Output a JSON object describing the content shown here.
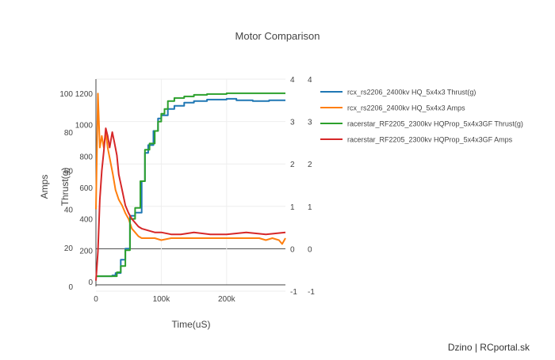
{
  "chart_data": {
    "type": "line",
    "title": "Motor Comparison",
    "xlabel": "Time(uS)",
    "ylabels": {
      "thrust": "Thrust(g)",
      "amps": "Amps"
    },
    "xlim": [
      0,
      290000
    ],
    "axes": {
      "thrust_left": {
        "range": [
          0,
          1250
        ],
        "ticks": [
          0,
          200,
          400,
          600,
          800,
          1000,
          1200
        ]
      },
      "amps_left": {
        "range": [
          0,
          105
        ],
        "ticks": [
          0,
          20,
          40,
          60,
          80,
          100
        ]
      },
      "amps_right_1": {
        "range": [
          -1,
          4
        ],
        "ticks": [
          -1,
          0,
          1,
          2,
          3,
          4
        ]
      },
      "amps_right_2": {
        "range": [
          -1,
          4
        ],
        "ticks": [
          -1,
          0,
          1,
          2,
          3,
          4
        ]
      }
    },
    "xticks": [
      0,
      100000,
      200000
    ],
    "xtick_labels": [
      "0",
      "100k",
      "200k"
    ],
    "grid": true,
    "legend_position": "right",
    "series": [
      {
        "name": "rcx_rs2206_2400kv HQ_5x4x3 Thrust(g)",
        "color": "#1f77b4",
        "axis": "thrust",
        "step": true,
        "x": [
          0,
          12000,
          25000,
          30000,
          38000,
          45000,
          52000,
          60000,
          70000,
          75000,
          80000,
          88000,
          95000,
          100000,
          110000,
          120000,
          135000,
          150000,
          170000,
          200000,
          215000,
          240000,
          265000,
          290000
        ],
        "y": [
          35,
          35,
          40,
          55,
          140,
          210,
          420,
          440,
          640,
          820,
          870,
          960,
          1040,
          1060,
          1100,
          1120,
          1140,
          1150,
          1160,
          1165,
          1155,
          1150,
          1155,
          1155
        ]
      },
      {
        "name": "rcx_rs2206_2400kv HQ_5x4x3 Amps",
        "color": "#ff7f0e",
        "axis": "amps",
        "step": false,
        "x": [
          0,
          3000,
          6000,
          9000,
          12000,
          15000,
          18000,
          22000,
          26000,
          30000,
          35000,
          40000,
          45000,
          50000,
          55000,
          60000,
          65000,
          70000,
          80000,
          90000,
          100000,
          115000,
          130000,
          150000,
          170000,
          200000,
          230000,
          250000,
          260000,
          270000,
          280000,
          285000,
          290000
        ],
        "y": [
          40,
          100,
          72,
          78,
          72,
          80,
          72,
          65,
          58,
          50,
          45,
          42,
          38,
          35,
          30,
          28,
          26,
          25,
          25,
          25,
          24,
          25,
          25,
          25,
          25,
          25,
          25,
          25,
          24,
          25,
          24,
          22,
          25
        ]
      },
      {
        "name": "racerstar_RF2205_2300kv HQProp_5x4x3GF Thrust(g)",
        "color": "#2ca02c",
        "axis": "thrust",
        "step": true,
        "x": [
          0,
          28000,
          32000,
          38000,
          45000,
          52000,
          60000,
          68000,
          75000,
          82000,
          90000,
          95000,
          100000,
          105000,
          110000,
          120000,
          135000,
          150000,
          170000,
          200000,
          230000,
          260000,
          290000
        ],
        "y": [
          35,
          35,
          60,
          100,
          200,
          400,
          470,
          640,
          840,
          880,
          960,
          1020,
          1070,
          1100,
          1150,
          1170,
          1180,
          1190,
          1195,
          1200,
          1200,
          1200,
          1200
        ]
      },
      {
        "name": "racerstar_RF2205_2300kv HQProp_5x4x3GF Amps",
        "color": "#d62728",
        "axis": "amps",
        "step": false,
        "x": [
          0,
          3000,
          6000,
          9000,
          12000,
          15000,
          18000,
          21000,
          25000,
          28000,
          32000,
          35000,
          40000,
          45000,
          50000,
          55000,
          60000,
          65000,
          70000,
          80000,
          90000,
          100000,
          115000,
          130000,
          150000,
          175000,
          200000,
          230000,
          260000,
          290000
        ],
        "y": [
          3,
          18,
          45,
          60,
          70,
          82,
          78,
          72,
          80,
          75,
          68,
          58,
          50,
          42,
          38,
          35,
          33,
          31,
          30,
          29,
          28,
          28,
          27,
          27,
          28,
          27,
          27,
          28,
          27,
          28
        ]
      }
    ]
  },
  "credit": "Dzino | RCportal.sk"
}
